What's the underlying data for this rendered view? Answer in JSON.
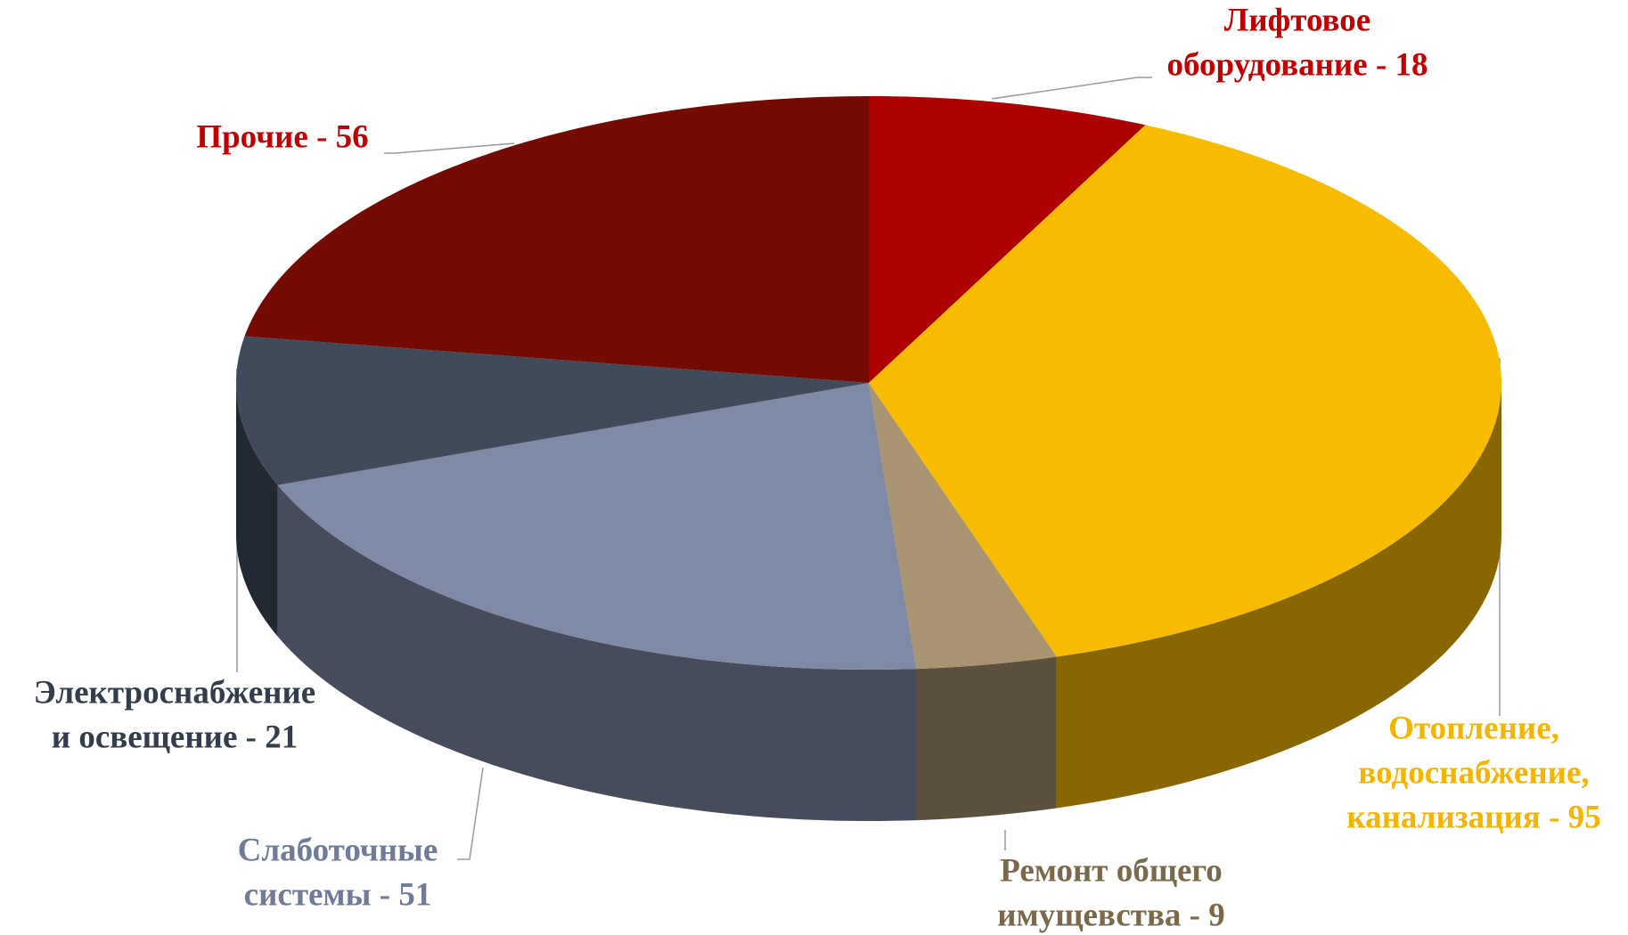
{
  "chart_data": {
    "type": "pie3d",
    "labels": [
      [
        "Лифтовое",
        "оборудование - 18"
      ],
      [
        "Отопление,",
        "водоснабжение,",
        "канализация - 95"
      ],
      [
        "Ремонт общего",
        "имущевства - 9"
      ],
      [
        "Слаботочные",
        "системы - 51"
      ],
      [
        "Электроснабжение",
        "и освещение - 21"
      ],
      [
        "Прочие - 56"
      ]
    ],
    "values": [
      18,
      95,
      9,
      51,
      21,
      56
    ],
    "colors": [
      "#ad0000",
      "#f9bb00",
      "#a89470",
      "#7f8ba6",
      "#404a5a",
      "#730b00"
    ],
    "label_colors": [
      "#c00000",
      "#f5b400",
      "#7a6a4a",
      "#6f7b98",
      "#333d4b",
      "#c00000"
    ]
  }
}
